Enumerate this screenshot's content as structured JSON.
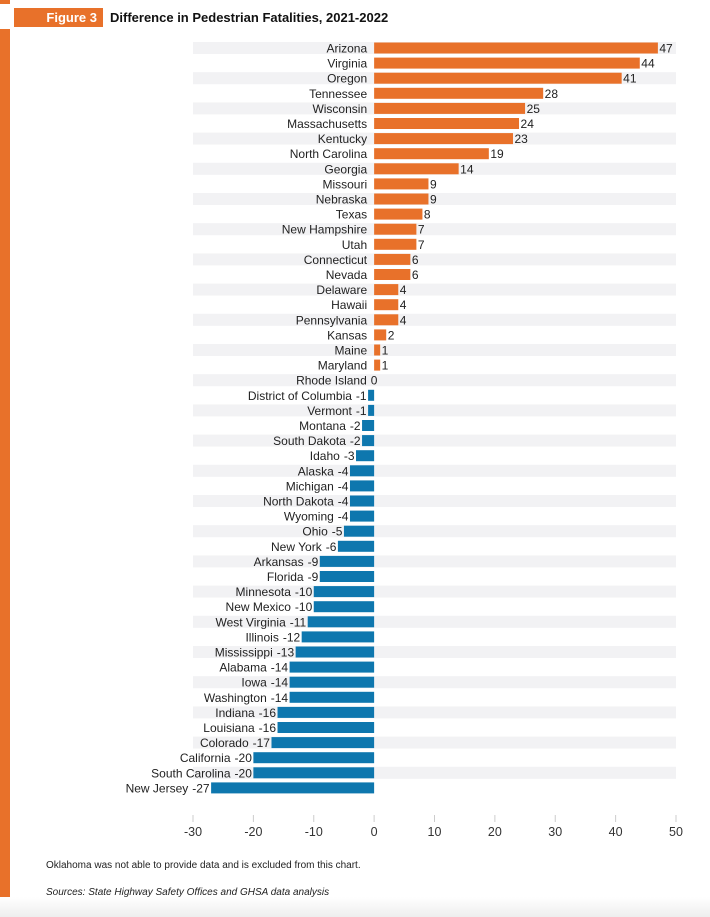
{
  "figure_label": "Figure 3",
  "chart_data": {
    "type": "bar",
    "orientation": "horizontal",
    "title": "Difference in Pedestrian Fatalities, 2021-2022",
    "xlabel": "",
    "ylabel": "",
    "xlim": [
      -30,
      50
    ],
    "xticks": [
      -30,
      -20,
      -10,
      0,
      10,
      20,
      30,
      40,
      50
    ],
    "positive_color": "#e8712a",
    "negative_color": "#0e77ae",
    "categories": [
      "Arizona",
      "Virginia",
      "Oregon",
      "Tennessee",
      "Wisconsin",
      "Massachusetts",
      "Kentucky",
      "North Carolina",
      "Georgia",
      "Missouri",
      "Nebraska",
      "Texas",
      "New Hampshire",
      "Utah",
      "Connecticut",
      "Nevada",
      "Delaware",
      "Hawaii",
      "Pennsylvania",
      "Kansas",
      "Maine",
      "Maryland",
      "Rhode Island",
      "District of Columbia",
      "Vermont",
      "Montana",
      "South Dakota",
      "Idaho",
      "Alaska",
      "Michigan",
      "North Dakota",
      "Wyoming",
      "Ohio",
      "New York",
      "Arkansas",
      "Florida",
      "Minnesota",
      "New Mexico",
      "West Virginia",
      "Illinois",
      "Mississippi",
      "Alabama",
      "Iowa",
      "Washington",
      "Indiana",
      "Louisiana",
      "Colorado",
      "California",
      "South Carolina",
      "New Jersey"
    ],
    "values": [
      47,
      44,
      41,
      28,
      25,
      24,
      23,
      19,
      14,
      9,
      9,
      8,
      7,
      7,
      6,
      6,
      4,
      4,
      4,
      2,
      1,
      1,
      0,
      -1,
      -1,
      -2,
      -2,
      -3,
      -4,
      -4,
      -4,
      -4,
      -5,
      -6,
      -9,
      -9,
      -10,
      -10,
      -11,
      -12,
      -13,
      -14,
      -14,
      -14,
      -16,
      -16,
      -17,
      -20,
      -20,
      -27
    ]
  },
  "footnote": "Oklahoma was not able to provide data and is excluded from this chart.",
  "sources": "Sources: State Highway Safety Offices and GHSA data analysis"
}
